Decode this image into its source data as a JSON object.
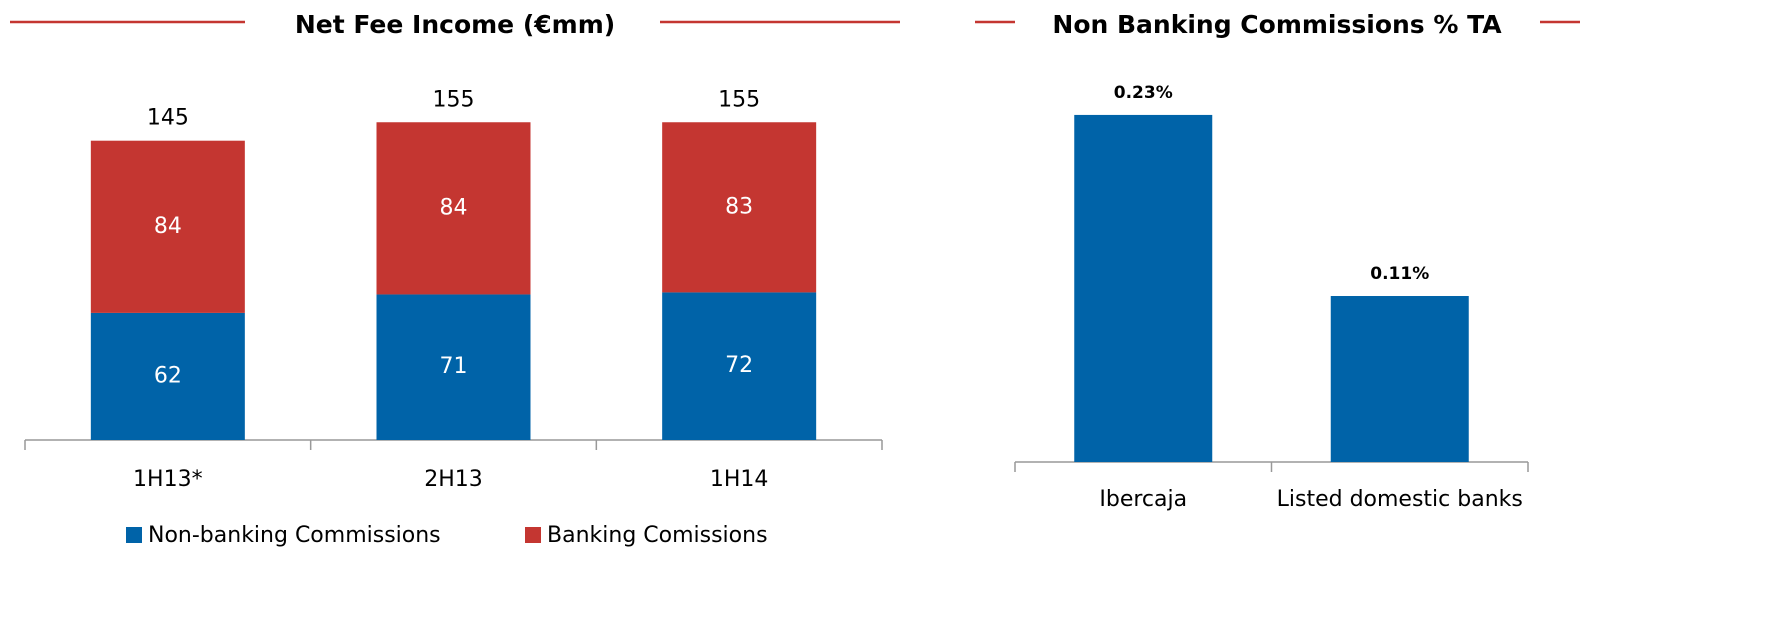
{
  "chart_data": [
    {
      "type": "stacked_bar",
      "title": "Net Fee Income (€mm)",
      "categories": [
        "1H13*",
        "2H13",
        "1H14"
      ],
      "series": [
        {
          "name": "Non-banking Commissions",
          "color": "#0063a8",
          "values": [
            62,
            71,
            72
          ]
        },
        {
          "name": "Banking Comissions",
          "color": "#c43631",
          "values": [
            84,
            84,
            83
          ]
        }
      ],
      "totals": [
        145,
        155,
        155
      ],
      "legend": "bottom"
    },
    {
      "type": "bar",
      "title": "Non Banking Commissions % TA",
      "categories": [
        "Ibercaja",
        "Listed domestic banks"
      ],
      "values": [
        0.23,
        0.11
      ],
      "value_labels": [
        "0.23%",
        "0.11%"
      ],
      "color": "#0063a8"
    }
  ]
}
